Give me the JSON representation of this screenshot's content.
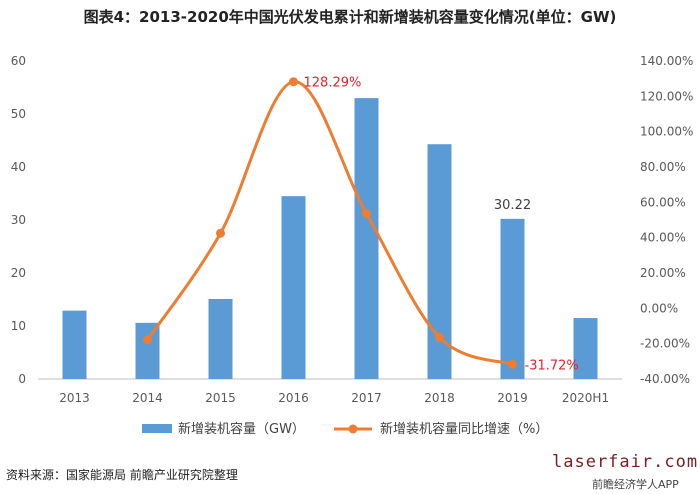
{
  "title": "图表4：2013-2020年中国光伏发电累计和新增装机容量变化情况(单位：GW)",
  "source": "资料来源：国家能源局 前瞻产业研究院整理",
  "watermark": {
    "brand": "laserfair.com",
    "app": "前瞻经济学人APP"
  },
  "colors": {
    "bar": "#5b9bd5",
    "line": "#ed7d31",
    "peak_label": "#e8202a",
    "grid": "#d9d9d9"
  },
  "chart_data": {
    "type": "bar+line",
    "categories": [
      "2013",
      "2014",
      "2015",
      "2016",
      "2017",
      "2018",
      "2019",
      "2020H1"
    ],
    "series": [
      {
        "name": "新增装机容量（GW）",
        "type": "bar",
        "axis": "left",
        "values": [
          12.9,
          10.6,
          15.1,
          34.5,
          53.0,
          44.3,
          30.22,
          11.5
        ]
      },
      {
        "name": "新增装机容量同比增速（%）",
        "type": "line",
        "axis": "right",
        "values": [
          null,
          -17.8,
          42.5,
          128.29,
          53.6,
          -16.4,
          -31.72,
          null
        ]
      }
    ],
    "y_left": {
      "ylim": [
        0,
        60
      ],
      "ticks": [
        "0",
        "10",
        "20",
        "30",
        "40",
        "50",
        "60"
      ]
    },
    "y_right": {
      "ylim": [
        -40,
        140
      ],
      "ticks": [
        "-40.00%",
        "-20.00%",
        "0.00%",
        "20.00%",
        "40.00%",
        "60.00%",
        "80.00%",
        "100.00%",
        "120.00%",
        "140.00%"
      ]
    },
    "annotations": {
      "bar_label_2019": "30.22",
      "peak_label": "128.29%",
      "min_label": "-31.72%"
    },
    "legend": "bottom",
    "grid": false
  }
}
